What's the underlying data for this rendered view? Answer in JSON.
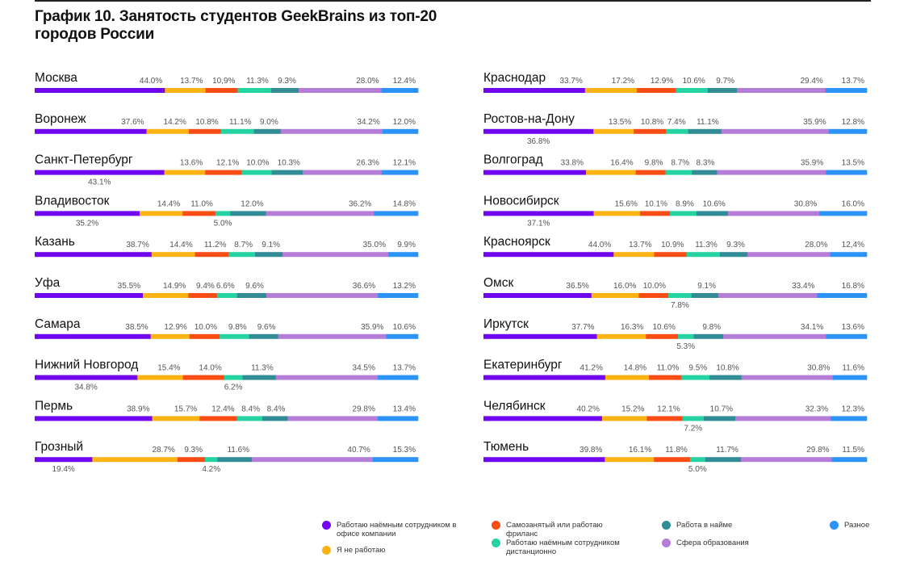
{
  "title": "График 10. Занятость студентов GeekBrains из топ-20 городов России",
  "legend": {
    "office": "Работаю наёмным сотрудником в офисе компании",
    "notworking": "Я не работаю",
    "freelance": "Самозанятый или работаю фриланс",
    "remote": "Работаю наёмным сотрудником дистанционно",
    "hired": "Работа в найме",
    "education": "Сфера образования",
    "other": "Разное"
  },
  "colors": {
    "office": "#7107f0",
    "notworking": "#fbb313",
    "freelance": "#fa4d15",
    "remote": "#25d3a2",
    "hired": "#318c95",
    "education": "#b47ed8",
    "other": "#2c93f7"
  },
  "chart_data": {
    "type": "bar",
    "orientation": "horizontal",
    "stacked": true,
    "series_keys": [
      "office",
      "notworking",
      "freelance",
      "remote",
      "hired",
      "education",
      "other"
    ],
    "columns": [
      {
        "cities": [
          {
            "name": "Москва",
            "values": [
              44.0,
              13.7,
              10.9,
              11.3,
              9.3,
              28.0,
              12.4
            ],
            "labels": [
              "44.0%",
              "13.7%",
              "10,9%",
              "11.3%",
              "9.3%",
              "28.0%",
              "12.4%"
            ],
            "below": []
          },
          {
            "name": "Воронеж",
            "values": [
              37.6,
              14.2,
              10.8,
              11.1,
              9.0,
              34.2,
              12.0
            ],
            "labels": [
              "37.6%",
              "14.2%",
              "10.8%",
              "11.1%",
              "9.0%",
              "34.2%",
              "12.0%"
            ],
            "below": []
          },
          {
            "name": "Санкт-Петербург",
            "values": [
              43.1,
              13.6,
              12.1,
              10.0,
              10.3,
              26.3,
              12.1
            ],
            "labels": [
              "43.1%",
              "13.6%",
              "12.1%",
              "10.0%",
              "10.3%",
              "26.3%",
              "12.1%"
            ],
            "below": [
              0
            ]
          },
          {
            "name": "Владивосток",
            "values": [
              35.2,
              14.4,
              11.0,
              5.0,
              12.0,
              36.2,
              14.8
            ],
            "labels": [
              "35.2%",
              "14.4%",
              "11.0%",
              "5.0%",
              "12.0%",
              "36.2%",
              "14.8%"
            ],
            "below": [
              0,
              3
            ]
          },
          {
            "name": "Казань",
            "values": [
              38.7,
              14.4,
              11.2,
              8.7,
              9.1,
              35.0,
              9.9
            ],
            "labels": [
              "38.7%",
              "14.4%",
              "11.2%",
              "8.7%",
              "9.1%",
              "35.0%",
              "9.9%"
            ],
            "below": []
          },
          {
            "name": "Уфа",
            "values": [
              35.5,
              14.9,
              9.4,
              6.6,
              9.6,
              36.6,
              13.2
            ],
            "labels": [
              "35.5%",
              "14.9%",
              "9.4%",
              "6.6%",
              "9.6%",
              "36.6%",
              "13.2%"
            ],
            "below": []
          },
          {
            "name": "Самара",
            "values": [
              38.5,
              12.9,
              10.0,
              9.8,
              9.6,
              35.9,
              10.6
            ],
            "labels": [
              "38.5%",
              "12.9%",
              "10.0%",
              "9.8%",
              "9.6%",
              "35.9%",
              "10.6%"
            ],
            "below": []
          },
          {
            "name": "Нижний Новгород",
            "values": [
              34.8,
              15.4,
              14.0,
              6.2,
              11.3,
              34.5,
              13.7
            ],
            "labels": [
              "34.8%",
              "15.4%",
              "14.0%",
              "6.2%",
              "11.3%",
              "34.5%",
              "13.7%"
            ],
            "below": [
              0,
              3
            ]
          },
          {
            "name": "Пермь",
            "values": [
              38.9,
              15.7,
              12.4,
              8.4,
              8.4,
              29.8,
              13.4
            ],
            "labels": [
              "38.9%",
              "15.7%",
              "12.4%",
              "8.4%",
              "8.4%",
              "29.8%",
              "13.4%"
            ],
            "below": []
          },
          {
            "name": "Грозный",
            "values": [
              19.4,
              28.7,
              9.3,
              4.2,
              11.6,
              40.7,
              15.3
            ],
            "labels": [
              "19.4%",
              "28.7%",
              "9.3%",
              "4.2%",
              "11.6%",
              "40.7%",
              "15.3%"
            ],
            "below": [
              0,
              3
            ]
          }
        ]
      },
      {
        "cities": [
          {
            "name": "Краснодар",
            "values": [
              33.7,
              17.2,
              12.9,
              10.6,
              9.7,
              29.4,
              13.7
            ],
            "labels": [
              "33.7%",
              "17.2%",
              "12.9%",
              "10.6%",
              "9.7%",
              "29.4%",
              "13.7%"
            ],
            "below": []
          },
          {
            "name": "Ростов-на-Дону",
            "values": [
              36.8,
              13.5,
              10.8,
              7.4,
              11.1,
              35.9,
              12.8
            ],
            "labels": [
              "36.8%",
              "13.5%",
              "10.8%",
              "7.4%",
              "11.1%",
              "35.9%",
              "12.8%"
            ],
            "below": [
              0
            ]
          },
          {
            "name": "Волгоград",
            "values": [
              33.8,
              16.4,
              9.8,
              8.7,
              8.3,
              35.9,
              13.5
            ],
            "labels": [
              "33.8%",
              "16.4%",
              "9.8%",
              "8.7%",
              "8.3%",
              "35.9%",
              "13.5%"
            ],
            "below": []
          },
          {
            "name": "Новосибирск",
            "values": [
              37.1,
              15.6,
              10.1,
              8.9,
              10.6,
              30.8,
              16.0
            ],
            "labels": [
              "37.1%",
              "15.6%",
              "10.1%",
              "8.9%",
              "10.6%",
              "30.8%",
              "16.0%"
            ],
            "below": [
              0
            ]
          },
          {
            "name": "Красноярск",
            "values": [
              44.0,
              13.7,
              10.9,
              11.3,
              9.3,
              28.0,
              12.4
            ],
            "labels": [
              "44.0%",
              "13.7%",
              "10.9%",
              "11.3%",
              "9.3%",
              "28.0%",
              "12,4%"
            ],
            "below": []
          },
          {
            "name": "Омск",
            "values": [
              36.5,
              16.0,
              10.0,
              7.8,
              9.1,
              33.4,
              16.8
            ],
            "labels": [
              "36.5%",
              "16.0%",
              "10.0%",
              "7.8%",
              "9.1%",
              "33.4%",
              "16.8%"
            ],
            "below": [
              3
            ]
          },
          {
            "name": "Иркутск",
            "values": [
              37.7,
              16.3,
              10.6,
              5.3,
              9.8,
              34.1,
              13.6
            ],
            "labels": [
              "37.7%",
              "16.3%",
              "10.6%",
              "5.3%",
              "9.8%",
              "34.1%",
              "13.6%"
            ],
            "below": [
              3
            ]
          },
          {
            "name": "Екатеринбург",
            "values": [
              41.2,
              14.8,
              11.0,
              9.5,
              10.8,
              30.8,
              11.6
            ],
            "labels": [
              "41.2%",
              "14.8%",
              "11.0%",
              "9.5%",
              "10.8%",
              "30.8%",
              "11.6%"
            ],
            "below": []
          },
          {
            "name": "Челябинск",
            "values": [
              40.2,
              15.2,
              12.1,
              7.2,
              10.7,
              32.3,
              12.3
            ],
            "labels": [
              "40.2%",
              "15.2%",
              "12.1%",
              "7.2%",
              "10.7%",
              "32.3%",
              "12.3%"
            ],
            "below": [
              3
            ]
          },
          {
            "name": "Тюмень",
            "values": [
              39.8,
              16.1,
              11.8,
              5.0,
              11.7,
              29.8,
              11.5
            ],
            "labels": [
              "39.8%",
              "16.1%",
              "11.8%",
              "5.0%",
              "11.7%",
              "29.8%",
              "11.5%"
            ],
            "below": [
              3
            ]
          }
        ]
      }
    ]
  }
}
